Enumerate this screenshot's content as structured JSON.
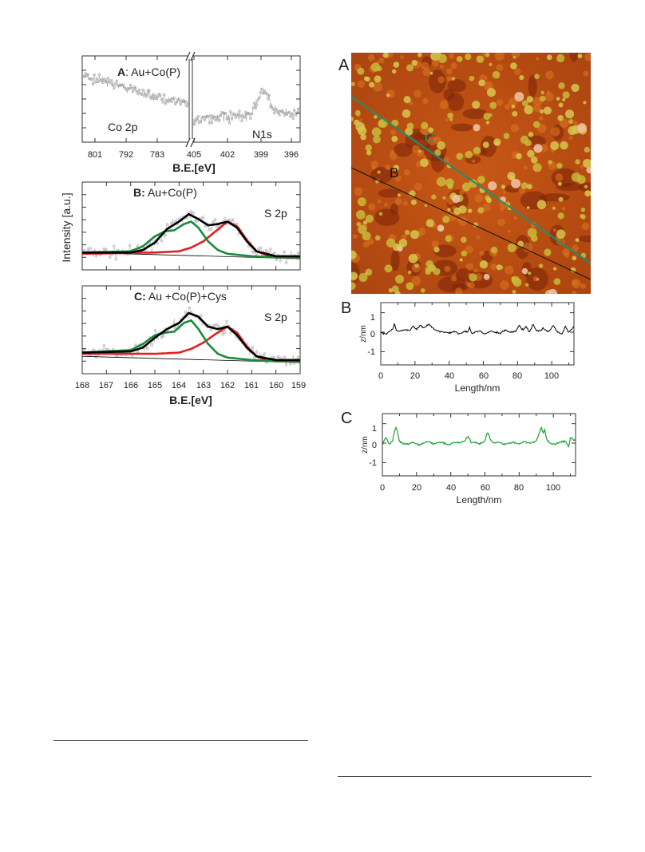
{
  "figure_left": {
    "y_axis_label": "Intensity [a.u.]",
    "panel_a": {
      "letter": "A",
      "title_rest": ": Au+Co(P)",
      "co_region_label": "Co 2p",
      "n_region_label": "N1s",
      "x_ticks": [
        "801",
        "792",
        "783",
        "405",
        "402",
        "399",
        "396"
      ],
      "xlabel": "B.E.[eV]"
    },
    "panel_b": {
      "letter": "B:",
      "title_rest": " Au+Co(P)",
      "region_label": "S 2p"
    },
    "panel_c": {
      "letter": "C:",
      "title_rest": " Au +Co(P)+Cys",
      "region_label": "S 2p",
      "x_ticks": [
        "168",
        "167",
        "166",
        "165",
        "164",
        "163",
        "162",
        "161",
        "160",
        "159"
      ],
      "xlabel": "B.E.[eV]"
    }
  },
  "figure_right": {
    "stm_panel_label": "A",
    "line_label_b": "B",
    "line_label_c": "C",
    "profile_b_label": "B",
    "profile_c_label": "C",
    "profile_ylabel": "z/nm",
    "profile_xlabel": "Length/nm",
    "profile_y_ticks": [
      "1",
      "0",
      "-1"
    ],
    "profile_x_ticks": [
      "0",
      "20",
      "40",
      "60",
      "80",
      "100"
    ]
  },
  "colors": {
    "envelope": "#000000",
    "component_red": "#e02020",
    "component_green": "#1a8a3a",
    "profile_b": "#000000",
    "profile_c": "#1aa035",
    "line_c": "#1f8f6f",
    "stm_base": "#b0400f"
  },
  "chart_data": [
    {
      "type": "scatter",
      "title": "A: Au+Co(P)",
      "xlabel": "B.E.[eV]",
      "ylabel": "Intensity [a.u.]",
      "x_ticks": [
        801,
        792,
        783,
        405,
        402,
        399,
        396
      ],
      "regions": [
        "Co 2p",
        "N1s"
      ],
      "axis_break": true
    },
    {
      "type": "line",
      "title": "B: Au+Co(P)",
      "ylabel": "Intensity [a.u.]",
      "xlim": [
        168,
        159
      ],
      "annotations": [
        "S 2p"
      ],
      "series": [
        {
          "color": "#000000",
          "x": [
            168,
            166,
            165.5,
            165,
            164.5,
            164,
            163.6,
            163.2,
            162.8,
            162.4,
            162,
            161.6,
            161.2,
            160.8,
            160,
            159
          ],
          "values": [
            0.05,
            0.05,
            0.07,
            0.13,
            0.24,
            0.3,
            0.36,
            0.32,
            0.27,
            0.28,
            0.3,
            0.25,
            0.14,
            0.06,
            0.02,
            0.02
          ]
        },
        {
          "color": "#e02020",
          "x": [
            168,
            165,
            164,
            163.5,
            163,
            162.5,
            162,
            161.6,
            161.2,
            160.8,
            160.4,
            160,
            159
          ],
          "values": [
            0.04,
            0.05,
            0.06,
            0.09,
            0.14,
            0.22,
            0.3,
            0.26,
            0.15,
            0.06,
            0.03,
            0.01,
            0.01
          ]
        },
        {
          "color": "#1a8a3a",
          "x": [
            168,
            166,
            165.5,
            165,
            164.6,
            164.2,
            163.8,
            163.5,
            163.2,
            162.8,
            162.4,
            162,
            161,
            160,
            159
          ],
          "values": [
            0.05,
            0.06,
            0.1,
            0.18,
            0.22,
            0.23,
            0.28,
            0.3,
            0.25,
            0.14,
            0.07,
            0.04,
            0.02,
            0.01,
            0.01
          ]
        }
      ]
    },
    {
      "type": "line",
      "title": "C: Au +Co(P)+Cys",
      "xlabel": "B.E.[eV]",
      "ylabel": "Intensity [a.u.]",
      "xlim": [
        168,
        159
      ],
      "annotations": [
        "S 2p"
      ],
      "series": [
        {
          "color": "#000000",
          "x": [
            168,
            166,
            165.5,
            165,
            164.5,
            164,
            163.6,
            163.2,
            162.8,
            162.4,
            162,
            161.6,
            161.2,
            160.8,
            160,
            159
          ],
          "values": [
            0.08,
            0.09,
            0.12,
            0.2,
            0.27,
            0.32,
            0.4,
            0.37,
            0.29,
            0.27,
            0.29,
            0.22,
            0.12,
            0.05,
            0.02,
            0.02
          ]
        },
        {
          "color": "#e02020",
          "x": [
            168,
            165,
            164,
            163.5,
            163,
            162.5,
            162,
            161.6,
            161.2,
            160.8,
            160.4,
            160,
            159
          ],
          "values": [
            0.07,
            0.07,
            0.08,
            0.11,
            0.16,
            0.23,
            0.29,
            0.24,
            0.13,
            0.05,
            0.02,
            0.01,
            0.01
          ]
        },
        {
          "color": "#1a8a3a",
          "x": [
            168,
            166,
            165.5,
            165,
            164.6,
            164.2,
            163.8,
            163.5,
            163.2,
            162.8,
            162.4,
            162,
            161,
            160,
            159
          ],
          "values": [
            0.08,
            0.1,
            0.15,
            0.22,
            0.24,
            0.25,
            0.32,
            0.34,
            0.27,
            0.15,
            0.07,
            0.04,
            0.02,
            0.01,
            0.01
          ]
        }
      ]
    },
    {
      "type": "line",
      "name": "profile B",
      "xlabel": "Length/nm",
      "ylabel": "z/nm",
      "xlim": [
        0,
        113
      ],
      "ylim": [
        -1.6,
        1.6
      ],
      "color": "#000000",
      "x": [
        0,
        3,
        5,
        7,
        8,
        9,
        11,
        14,
        17,
        19,
        21,
        23,
        25,
        28,
        30,
        32,
        34,
        37,
        40,
        43,
        46,
        49,
        51,
        52,
        53,
        55,
        58,
        61,
        64,
        67,
        70,
        73,
        76,
        79,
        81,
        83,
        85,
        87,
        89,
        91,
        93,
        95,
        98,
        101,
        103,
        106,
        108,
        110,
        113
      ],
      "values": [
        0.0,
        -0.1,
        0.05,
        0.15,
        0.45,
        0.1,
        0.05,
        0.15,
        0.1,
        0.3,
        0.15,
        0.35,
        0.2,
        0.4,
        0.25,
        0.1,
        0.05,
        0.0,
        -0.05,
        0.05,
        -0.1,
        0.05,
        0.0,
        0.25,
        -0.05,
        0.0,
        0.05,
        -0.1,
        0.05,
        0.0,
        -0.05,
        0.1,
        0.0,
        0.05,
        0.35,
        0.1,
        0.3,
        0.0,
        0.4,
        0.1,
        0.05,
        0.2,
        0.0,
        0.35,
        0.05,
        -0.1,
        0.3,
        0.0,
        0.3
      ]
    },
    {
      "type": "line",
      "name": "profile C",
      "xlabel": "Length/nm",
      "ylabel": "z/nm",
      "xlim": [
        0,
        113
      ],
      "ylim": [
        -1.6,
        1.6
      ],
      "color": "#1aa035",
      "x": [
        0,
        2,
        4,
        6,
        7,
        8,
        9,
        10,
        12,
        15,
        18,
        21,
        24,
        27,
        30,
        33,
        36,
        39,
        42,
        45,
        48,
        50,
        51,
        52,
        54,
        57,
        60,
        61,
        62,
        63,
        65,
        68,
        71,
        74,
        77,
        80,
        83,
        86,
        89,
        91,
        92,
        93,
        94,
        95,
        96,
        98,
        101,
        104,
        107,
        109,
        110,
        112,
        113
      ],
      "values": [
        -0.1,
        0.3,
        -0.05,
        0.1,
        0.6,
        0.8,
        0.5,
        0.1,
        0.0,
        -0.05,
        0.05,
        -0.1,
        0.0,
        0.1,
        -0.05,
        0.05,
        0.0,
        -0.1,
        0.05,
        0.0,
        0.1,
        0.35,
        0.2,
        0.0,
        0.05,
        -0.05,
        0.1,
        0.45,
        0.55,
        0.2,
        0.0,
        0.05,
        -0.05,
        0.0,
        0.05,
        -0.05,
        0.1,
        0.0,
        0.05,
        0.3,
        0.6,
        0.8,
        0.5,
        0.7,
        0.2,
        0.0,
        -0.05,
        0.05,
        0.1,
        -0.2,
        0.3,
        0.15,
        0.2
      ]
    }
  ]
}
